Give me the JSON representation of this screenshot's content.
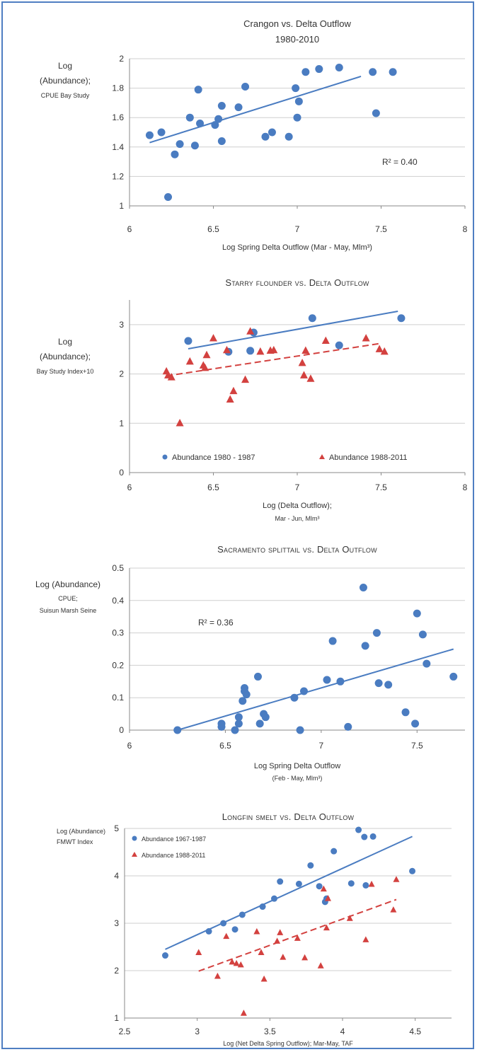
{
  "chart_data": [
    {
      "type": "scatter",
      "title": "Crangon vs. Delta Outflow",
      "subtitle": "1980-2010",
      "ylabel_lines": [
        "Log",
        "(Abundance);",
        "CPUE Bay Study"
      ],
      "xlabel": "Log Spring Delta Outflow (Mar - May, Mlm³)",
      "xlim": [
        6,
        8
      ],
      "ylim": [
        1,
        2
      ],
      "x_ticks": [
        6,
        6.5,
        7,
        7.5,
        8
      ],
      "x_tick_labels": [
        "6",
        "6.5",
        "7",
        "7.5",
        "8"
      ],
      "y_ticks": [
        1,
        1.2,
        1.4,
        1.6,
        1.8,
        2
      ],
      "y_tick_labels": [
        "1",
        "1.2",
        "1.4",
        "1.6",
        "1.8",
        "2"
      ],
      "grid": "horizontal",
      "annotation": "R² = 0.40",
      "series": [
        {
          "color": "#4a7cc1",
          "marker": "circle",
          "x": [
            6.12,
            6.19,
            6.23,
            6.27,
            6.3,
            6.36,
            6.39,
            6.41,
            6.42,
            6.51,
            6.53,
            6.55,
            6.55,
            6.65,
            6.69,
            6.81,
            6.85,
            6.95,
            6.99,
            7.0,
            7.01,
            7.05,
            7.13,
            7.25,
            7.45,
            7.47,
            7.57
          ],
          "y": [
            1.48,
            1.5,
            1.06,
            1.35,
            1.42,
            1.6,
            1.41,
            1.79,
            1.56,
            1.55,
            1.59,
            1.44,
            1.68,
            1.67,
            1.81,
            1.47,
            1.5,
            1.47,
            1.8,
            1.6,
            1.71,
            1.91,
            1.93,
            1.94,
            1.91,
            1.63,
            1.91
          ],
          "trend": [
            [
              6.12,
              1.43
            ],
            [
              7.38,
              1.88
            ]
          ]
        }
      ]
    },
    {
      "type": "scatter",
      "title": "Starry flounder vs. Delta Outflow",
      "ylabel_lines": [
        "Log",
        "(Abundance);",
        "Bay Study Index+10"
      ],
      "xlabel_lines": [
        "Log (Delta Outflow);",
        "Mar - Jun, Mlm³"
      ],
      "xlim": [
        6,
        8
      ],
      "ylim": [
        0,
        3.5
      ],
      "x_ticks": [
        6,
        6.5,
        7,
        7.5,
        8
      ],
      "x_tick_labels": [
        "6",
        "6.5",
        "7",
        "7.5",
        "8"
      ],
      "y_ticks": [
        0,
        1,
        2,
        3
      ],
      "y_tick_labels": [
        "0",
        "1",
        "2",
        "3"
      ],
      "grid": "horizontal",
      "legend_position": "bottom",
      "series": [
        {
          "name": "Abundance 1980 - 1987",
          "color": "#4a7cc1",
          "marker": "circle",
          "x": [
            6.35,
            6.59,
            6.72,
            6.74,
            7.09,
            7.25,
            7.62
          ],
          "y": [
            2.67,
            2.45,
            2.47,
            2.84,
            3.13,
            2.58,
            3.13
          ],
          "trend": [
            [
              6.35,
              2.51
            ],
            [
              7.6,
              3.27
            ]
          ]
        },
        {
          "name": "Abundance 1988-2011",
          "color": "#d3413f",
          "marker": "triangle",
          "x": [
            6.22,
            6.23,
            6.25,
            6.3,
            6.36,
            6.44,
            6.45,
            6.46,
            6.5,
            6.58,
            6.6,
            6.62,
            6.69,
            6.72,
            6.78,
            6.84,
            6.86,
            7.03,
            7.04,
            7.05,
            7.08,
            7.17,
            7.41,
            7.49,
            7.52
          ],
          "y": [
            2.05,
            1.97,
            1.93,
            1.0,
            2.25,
            2.17,
            2.12,
            2.38,
            2.72,
            2.48,
            1.48,
            1.65,
            1.88,
            2.86,
            2.45,
            2.47,
            2.48,
            2.22,
            1.97,
            2.47,
            1.9,
            2.67,
            2.72,
            2.5,
            2.45
          ],
          "trend": [
            [
              6.22,
              1.96
            ],
            [
              7.5,
              2.62
            ]
          ]
        }
      ]
    },
    {
      "type": "scatter",
      "title": "Sacramento splittail vs. Delta Outflow",
      "ylabel_lines": [
        "Log (Abundance)",
        "CPUE;",
        "Suisun Marsh Seine"
      ],
      "xlabel_lines": [
        "Log Spring Delta Outflow",
        "(Feb - May, Mlm³)"
      ],
      "xlim": [
        6,
        7.75
      ],
      "ylim": [
        0,
        0.5
      ],
      "x_ticks": [
        6,
        6.5,
        7,
        7.5
      ],
      "x_tick_labels": [
        "6",
        "6.5",
        "7",
        "7.5"
      ],
      "y_ticks": [
        0,
        0.1,
        0.2,
        0.3,
        0.4,
        0.5
      ],
      "y_tick_labels": [
        "0",
        "0.1",
        "0.2",
        "0.3",
        "0.4",
        "0.5"
      ],
      "grid": "horizontal",
      "annotation": "R² = 0.36",
      "series": [
        {
          "color": "#4a7cc1",
          "marker": "circle",
          "x": [
            6.25,
            6.48,
            6.48,
            6.55,
            6.57,
            6.57,
            6.59,
            6.6,
            6.6,
            6.61,
            6.67,
            6.68,
            6.7,
            6.71,
            6.86,
            6.89,
            6.91,
            7.03,
            7.06,
            7.1,
            7.14,
            7.22,
            7.23,
            7.29,
            7.3,
            7.35,
            7.44,
            7.49,
            7.5,
            7.53,
            7.55,
            7.69
          ],
          "y": [
            0.0,
            0.02,
            0.01,
            0.0,
            0.04,
            0.02,
            0.09,
            0.13,
            0.12,
            0.11,
            0.165,
            0.02,
            0.05,
            0.04,
            0.1,
            0.0,
            0.12,
            0.155,
            0.275,
            0.15,
            0.01,
            0.44,
            0.26,
            0.3,
            0.145,
            0.14,
            0.055,
            0.02,
            0.36,
            0.295,
            0.205,
            0.165
          ],
          "trend": [
            [
              6.25,
              0.0
            ],
            [
              7.69,
              0.25
            ]
          ]
        }
      ]
    },
    {
      "type": "scatter",
      "title": "Longfin smelt vs. Delta Outflow",
      "ylabel_lines": [
        "Log (Abundance)",
        "FMWT Index"
      ],
      "xlabel": "Log (Net Delta Spring Outflow); Mar-May, TAF",
      "xlim": [
        2.5,
        4.75
      ],
      "ylim": [
        1,
        5
      ],
      "x_ticks": [
        2.5,
        3,
        3.5,
        4,
        4.5
      ],
      "x_tick_labels": [
        "2.5",
        "3",
        "3.5",
        "4",
        "4.5"
      ],
      "y_ticks": [
        1,
        2,
        3,
        4,
        5
      ],
      "y_tick_labels": [
        "1",
        "2",
        "3",
        "4",
        "5"
      ],
      "grid": "horizontal",
      "legend_position": "top-left",
      "series": [
        {
          "name": "Abundance 1967-1987",
          "color": "#4a7cc1",
          "marker": "circle",
          "x": [
            2.78,
            3.08,
            3.18,
            3.26,
            3.31,
            3.45,
            3.53,
            3.57,
            3.7,
            3.78,
            3.84,
            3.88,
            3.89,
            3.94,
            4.06,
            4.11,
            4.15,
            4.16,
            4.21,
            4.48
          ],
          "y": [
            2.32,
            2.83,
            3.0,
            2.87,
            3.18,
            3.35,
            3.52,
            3.88,
            3.83,
            4.22,
            3.78,
            3.45,
            3.52,
            4.52,
            3.84,
            4.97,
            4.82,
            3.8,
            4.83,
            4.1
          ],
          "trend": [
            [
              2.78,
              2.45
            ],
            [
              4.48,
              4.83
            ]
          ]
        },
        {
          "name": "Abundance 1988-2011",
          "color": "#d3413f",
          "marker": "triangle",
          "x": [
            3.01,
            3.14,
            3.2,
            3.24,
            3.27,
            3.3,
            3.32,
            3.41,
            3.44,
            3.46,
            3.55,
            3.57,
            3.59,
            3.69,
            3.74,
            3.85,
            3.87,
            3.89,
            3.9,
            4.05,
            4.16,
            4.2,
            4.35,
            4.37
          ],
          "y": [
            2.38,
            1.88,
            2.72,
            2.18,
            2.15,
            2.12,
            1.1,
            2.82,
            2.38,
            1.82,
            2.62,
            2.8,
            2.28,
            2.68,
            2.27,
            2.1,
            3.72,
            2.9,
            3.52,
            3.1,
            2.65,
            3.82,
            3.28,
            3.92
          ],
          "trend": [
            [
              3.01,
              1.99
            ],
            [
              4.37,
              3.5
            ]
          ]
        }
      ]
    }
  ]
}
